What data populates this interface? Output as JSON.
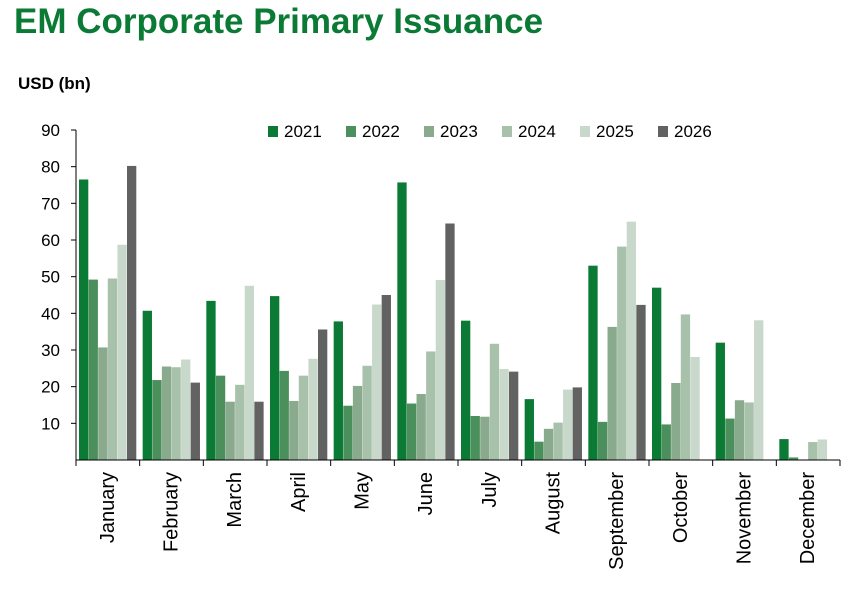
{
  "title": "EM Corporate Primary Issuance",
  "unit_label": "USD (bn)",
  "chart_data": {
    "type": "bar",
    "title": "EM Corporate Primary Issuance",
    "ylabel": "USD (bn)",
    "xlabel": "",
    "ylim": [
      0,
      90
    ],
    "yticks": [
      10,
      20,
      30,
      40,
      50,
      60,
      70,
      80,
      90
    ],
    "grid": false,
    "legend_position": "top-right",
    "categories": [
      "January",
      "February",
      "March",
      "April",
      "May",
      "June",
      "July",
      "August",
      "September",
      "October",
      "November",
      "December"
    ],
    "series": [
      {
        "name": "2021",
        "color": "#0a7a35",
        "values": [
          76.5,
          40.7,
          43.4,
          44.7,
          37.8,
          75.7,
          38.0,
          16.6,
          53.0,
          47.0,
          32.0,
          5.7
        ]
      },
      {
        "name": "2022",
        "color": "#4a8f5c",
        "values": [
          49.2,
          21.8,
          23.0,
          24.3,
          14.8,
          15.4,
          12.0,
          5.0,
          10.4,
          9.7,
          11.3,
          0.7
        ]
      },
      {
        "name": "2023",
        "color": "#8aaa8e",
        "values": [
          30.7,
          25.5,
          15.9,
          16.1,
          20.2,
          18.0,
          11.8,
          8.5,
          36.3,
          21.0,
          16.3,
          null
        ]
      },
      {
        "name": "2024",
        "color": "#a7c1ab",
        "values": [
          49.5,
          25.3,
          20.5,
          23.0,
          25.7,
          29.6,
          31.7,
          10.2,
          58.2,
          39.7,
          15.7,
          4.9
        ]
      },
      {
        "name": "2025",
        "color": "#c8d8ca",
        "values": [
          58.7,
          27.4,
          47.5,
          27.6,
          42.4,
          49.1,
          24.8,
          19.2,
          65.0,
          28.1,
          38.1,
          5.6
        ]
      },
      {
        "name": "2026",
        "color": "#626262",
        "values": [
          80.2,
          21.1,
          15.9,
          35.6,
          45.0,
          64.5,
          24.1,
          19.8,
          42.3,
          null,
          null,
          null
        ]
      }
    ]
  }
}
